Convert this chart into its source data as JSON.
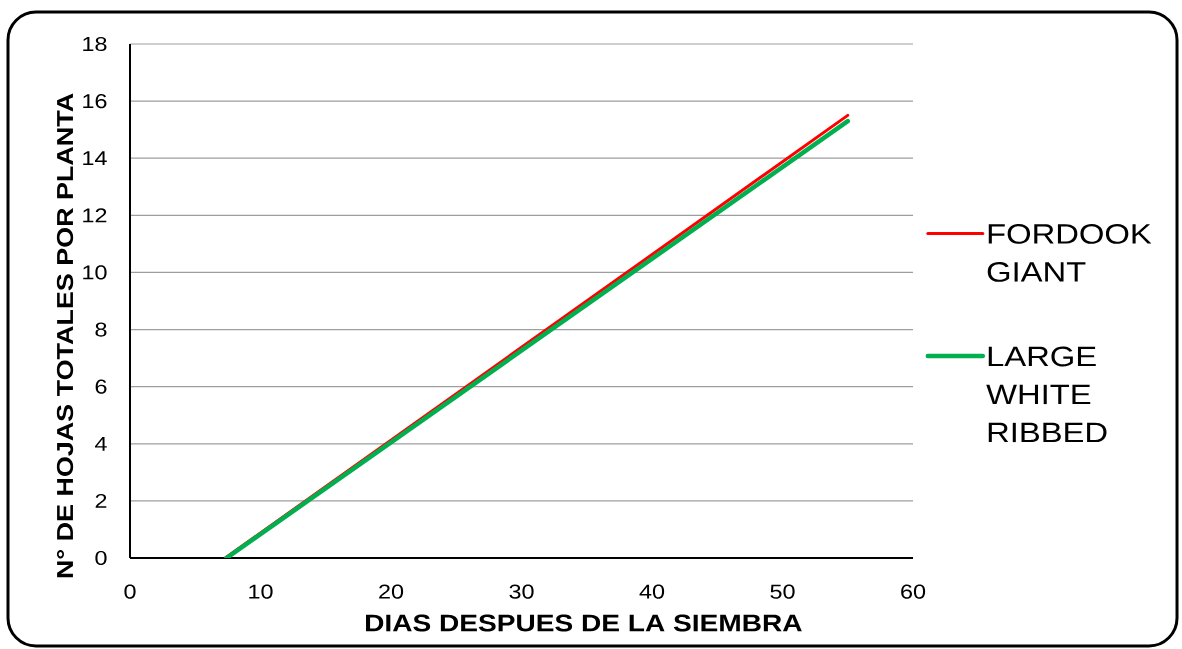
{
  "chart_data": {
    "type": "line",
    "xlabel": "DIAS DESPUES DE LA SIEMBRA",
    "ylabel": "N° DE HOJAS TOTALES POR PLANTA",
    "xlim": [
      0,
      60
    ],
    "xticks": [
      0,
      10,
      20,
      30,
      40,
      50,
      60
    ],
    "ylim": [
      0,
      18
    ],
    "yticks": [
      0,
      2,
      4,
      6,
      8,
      10,
      12,
      14,
      16,
      18
    ],
    "grid": "y",
    "legend": "right",
    "line_style": "solid",
    "marker": "none",
    "series": [
      {
        "name": "FORDOOK GIANT",
        "color": "#ff0000",
        "x": [
          7.3,
          55
        ],
        "values": [
          0,
          15.5
        ]
      },
      {
        "name": "LARGE WHITE RIBBED",
        "color": "#00b050",
        "x": [
          7.4,
          55
        ],
        "values": [
          0,
          15.3
        ]
      }
    ]
  }
}
